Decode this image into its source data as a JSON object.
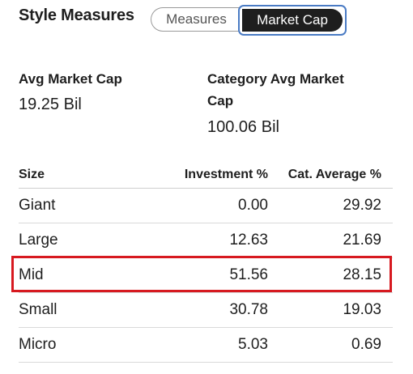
{
  "header": {
    "title": "Style Measures",
    "tabs": [
      {
        "label": "Measures",
        "selected": false
      },
      {
        "label": "Market Cap",
        "selected": true
      }
    ]
  },
  "summary": {
    "avg_market_cap": {
      "label": "Avg Market Cap",
      "value": "19.25 Bil"
    },
    "category_avg_market_cap": {
      "label_line1": "Category Avg Market",
      "label_line2": "Cap",
      "value": "100.06 Bil"
    }
  },
  "table": {
    "columns": [
      "Size",
      "Investment %",
      "Cat. Average %"
    ],
    "rows": [
      {
        "size": "Giant",
        "investment": "0.00",
        "cat_average": "29.92"
      },
      {
        "size": "Large",
        "investment": "12.63",
        "cat_average": "21.69"
      },
      {
        "size": "Mid",
        "investment": "51.56",
        "cat_average": "28.15"
      },
      {
        "size": "Small",
        "investment": "30.78",
        "cat_average": "19.03"
      },
      {
        "size": "Micro",
        "investment": "5.03",
        "cat_average": "0.69"
      }
    ],
    "highlighted_row": "Mid"
  },
  "colors": {
    "highlight_border": "#d71920",
    "selected_tab_bg": "#1e1e1e",
    "focus_ring": "#4a7bc4"
  }
}
